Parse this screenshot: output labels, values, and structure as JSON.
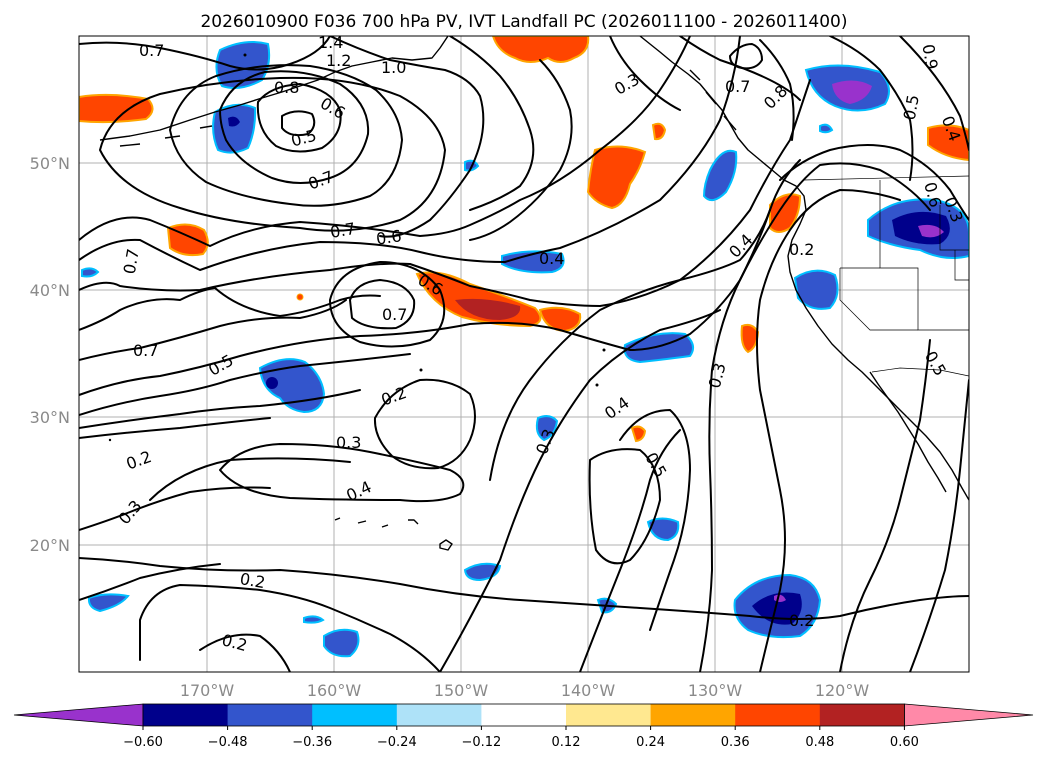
{
  "title": "2026010900 F036 700 hPa PV, IVT Landfall PC (2026011100 - 2026011400)",
  "longitude_labels": [
    "170°W",
    "160°W",
    "150°W",
    "140°W",
    "130°W",
    "120°W"
  ],
  "latitude_labels": [
    "50°N",
    "40°N",
    "30°N",
    "20°N"
  ],
  "colorbar": {
    "tick_labels": [
      "−0.60",
      "−0.48",
      "−0.36",
      "−0.24",
      "−0.12",
      "0.12",
      "0.24",
      "0.36",
      "0.48",
      "0.60"
    ],
    "colors": [
      "#9932cc",
      "#00008b",
      "#3355cc",
      "#00bfff",
      "#aee2f8",
      "#ffffff",
      "#ffe890",
      "#ffa500",
      "#ff4500",
      "#b22222",
      "#ff89a8"
    ]
  },
  "contour_labels": {
    "l01": "0.7",
    "l02": "1.4",
    "l03": "1.2",
    "l04": "1.0",
    "l05": "0.8",
    "l06": "0.6",
    "l07": "0.5",
    "l08": "0.7",
    "l09": "0.7",
    "l10": "0.6",
    "l11": "0.7",
    "l12": "0.6",
    "l13": "0.7",
    "l14": "0.7",
    "l15": "0.5",
    "l16": "0.2",
    "l17": "0.3",
    "l18": "0.4",
    "l19": "0.3",
    "l20": "0.2",
    "l21": "0.2",
    "l22": "0.4",
    "l23": "0.3",
    "l24": "0.4",
    "l25": "0.5",
    "l26": "0.3",
    "l27": "0.3",
    "l28": "0.7",
    "l29": "0.8",
    "l30": "0.9",
    "l31": "0.5",
    "l32": "0.4",
    "l33": "0.6",
    "l34": "0.2",
    "l35": "0.4",
    "l36": "0.3",
    "l37": "0.5",
    "l38": "0.2",
    "l39": "0.2"
  }
}
